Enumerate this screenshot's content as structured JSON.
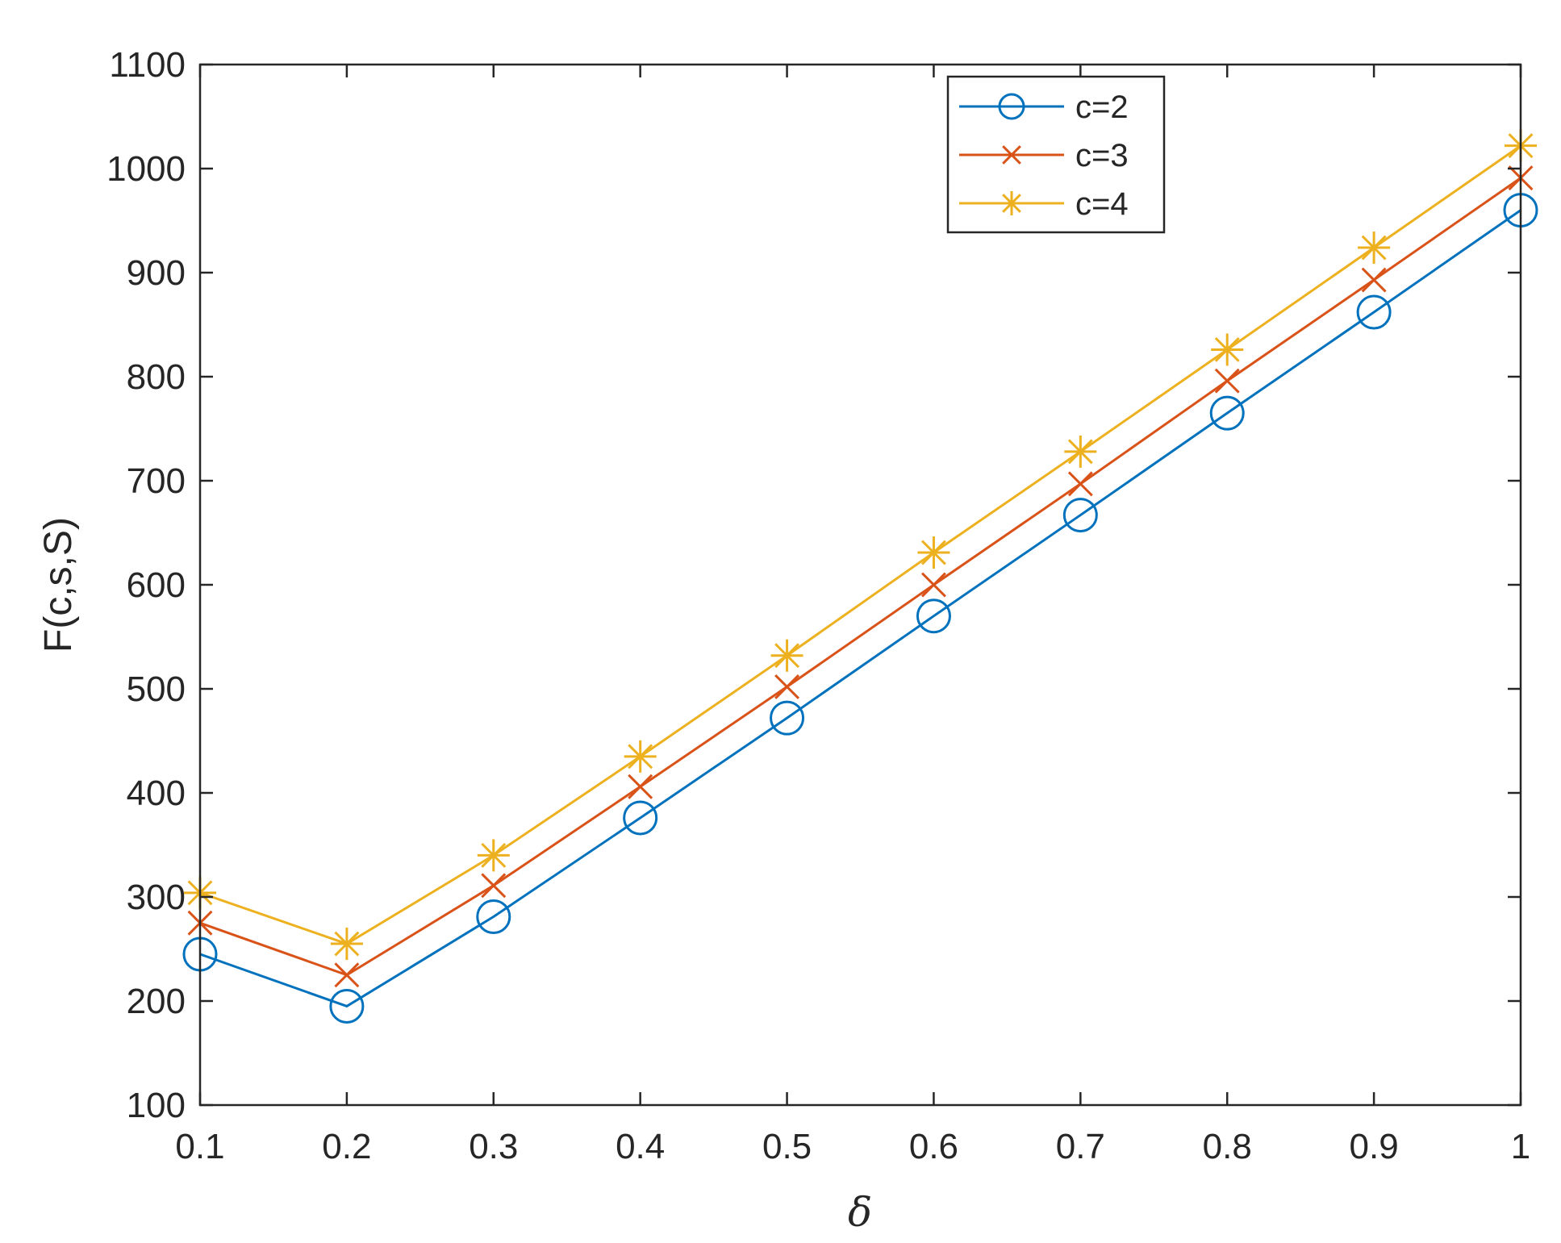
{
  "chart_data": {
    "type": "line",
    "title": "",
    "xlabel": "δ",
    "ylabel": "F(c,s,S)",
    "xlim": [
      0.1,
      1
    ],
    "ylim": [
      100,
      1100
    ],
    "xticks": [
      "0.1",
      "0.2",
      "0.3",
      "0.4",
      "0.5",
      "0.6",
      "0.7",
      "0.8",
      "0.9",
      "1"
    ],
    "yticks": [
      "100",
      "200",
      "300",
      "400",
      "500",
      "600",
      "700",
      "800",
      "900",
      "1000",
      "1100"
    ],
    "x": [
      0.1,
      0.2,
      0.3,
      0.4,
      0.5,
      0.6,
      0.7,
      0.8,
      0.9,
      1.0
    ],
    "grid": false,
    "legend_position": "top-right",
    "series": [
      {
        "name": "c=2",
        "color": "#0072BD",
        "marker": "circle",
        "values": [
          245,
          195,
          281,
          376,
          472,
          570,
          667,
          765,
          862,
          960
        ]
      },
      {
        "name": "c=3",
        "color": "#D95319",
        "marker": "x",
        "values": [
          275,
          225,
          311,
          406,
          502,
          600,
          697,
          796,
          893,
          991
        ]
      },
      {
        "name": "c=4",
        "color": "#EDB120",
        "marker": "asterisk",
        "values": [
          304,
          255,
          340,
          435,
          532,
          631,
          728,
          826,
          924,
          1022
        ]
      }
    ]
  }
}
